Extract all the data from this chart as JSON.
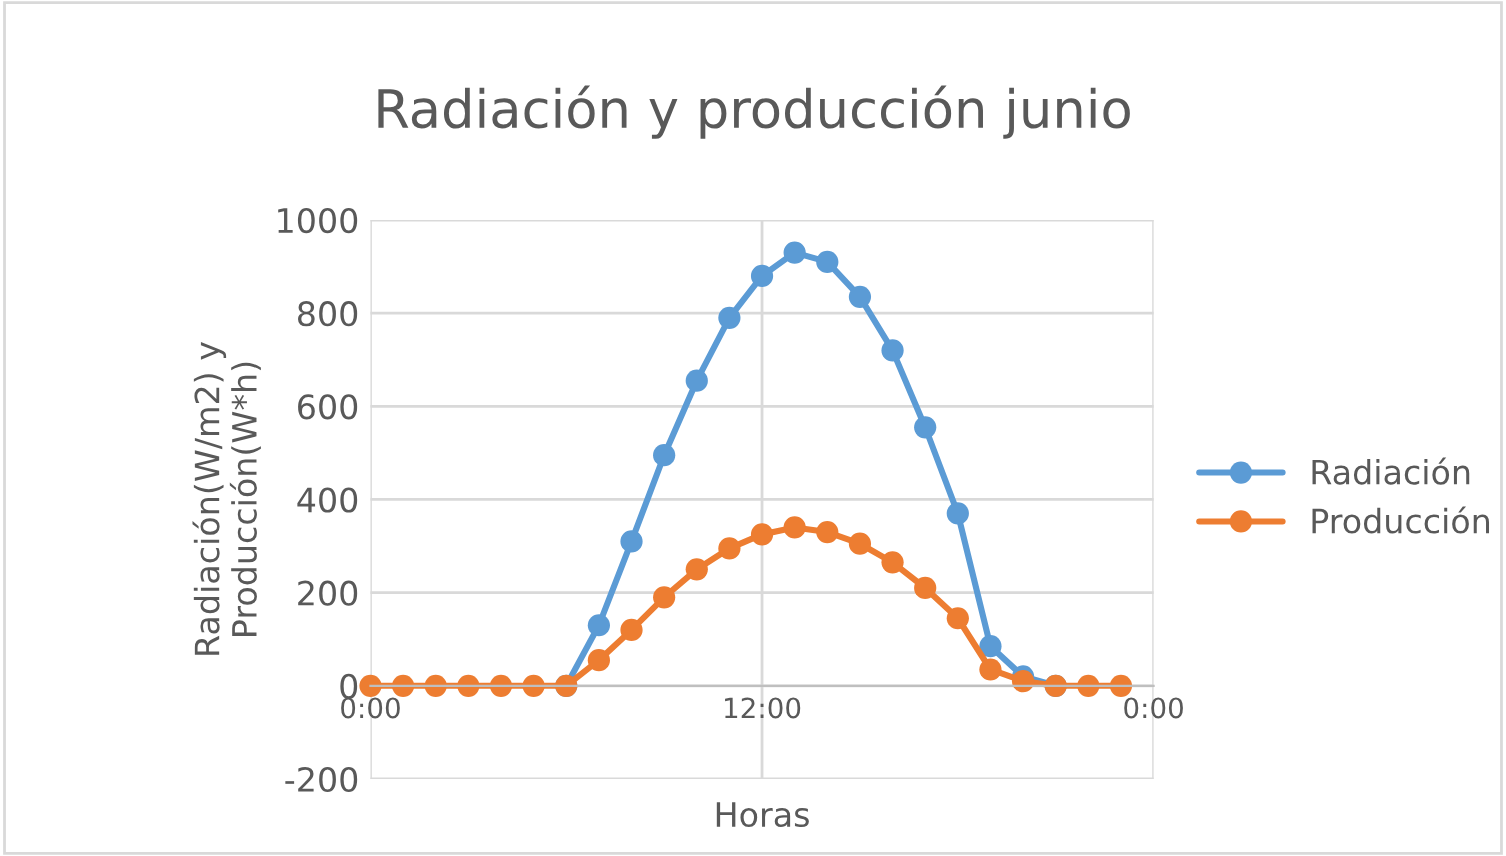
{
  "chart_data": {
    "type": "line",
    "title": "Radiación y producción junio",
    "xlabel": "Horas",
    "ylabel": "Radiación(W/m2) y\nProducción(W*h)",
    "x": [
      0,
      1,
      2,
      3,
      4,
      5,
      6,
      7,
      8,
      9,
      10,
      11,
      12,
      13,
      14,
      15,
      16,
      17,
      18,
      19,
      20,
      21,
      22,
      23
    ],
    "series": [
      {
        "name": "Radiación",
        "color": "#5b9bd5",
        "values": [
          null,
          null,
          null,
          null,
          null,
          null,
          0,
          130,
          310,
          495,
          655,
          790,
          880,
          930,
          910,
          835,
          720,
          555,
          370,
          85,
          20,
          0,
          null,
          null
        ]
      },
      {
        "name": "Producción",
        "color": "#ed7d31",
        "values": [
          0,
          0,
          0,
          0,
          0,
          0,
          0,
          55,
          120,
          190,
          250,
          295,
          325,
          340,
          330,
          305,
          265,
          210,
          145,
          35,
          10,
          0,
          0,
          0
        ]
      }
    ],
    "xlim": [
      0,
      24
    ],
    "xticks": [
      {
        "value": 0,
        "label": "0:00"
      },
      {
        "value": 12,
        "label": "12:00"
      },
      {
        "value": 24,
        "label": "0:00"
      }
    ],
    "ylim": [
      -200,
      1000
    ],
    "yticks": [
      -200,
      0,
      200,
      400,
      600,
      800,
      1000
    ],
    "grid": true,
    "legend": "right",
    "marker": "circle",
    "line_style": "solid"
  }
}
